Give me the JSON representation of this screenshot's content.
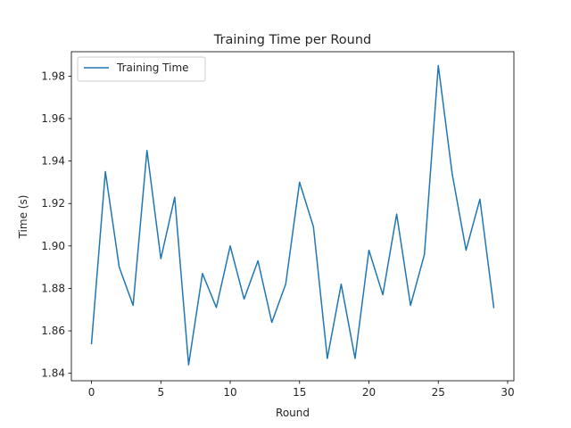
{
  "chart_data": {
    "type": "line",
    "title": "Training Time per Round",
    "xlabel": "Round",
    "ylabel": "Time (s)",
    "xlim": [
      -1.45,
      30.45
    ],
    "ylim": [
      1.8365,
      1.9915
    ],
    "xticks": [
      0,
      5,
      10,
      15,
      20,
      25,
      30
    ],
    "yticks": [
      1.84,
      1.86,
      1.88,
      1.9,
      1.92,
      1.94,
      1.96,
      1.98
    ],
    "grid": false,
    "legend_position": "top-left",
    "series": [
      {
        "name": "Training Time",
        "color": "#1f77b4",
        "x": [
          0,
          1,
          2,
          3,
          4,
          5,
          6,
          7,
          8,
          9,
          10,
          11,
          12,
          13,
          14,
          15,
          16,
          17,
          18,
          19,
          20,
          21,
          22,
          23,
          24,
          25,
          26,
          27,
          28,
          29
        ],
        "y": [
          1.854,
          1.935,
          1.89,
          1.872,
          1.945,
          1.894,
          1.923,
          1.844,
          1.887,
          1.871,
          1.9,
          1.875,
          1.893,
          1.864,
          1.882,
          1.93,
          1.909,
          1.847,
          1.882,
          1.847,
          1.898,
          1.877,
          1.915,
          1.872,
          1.896,
          1.985,
          1.934,
          1.898,
          1.922,
          1.871
        ]
      }
    ]
  }
}
